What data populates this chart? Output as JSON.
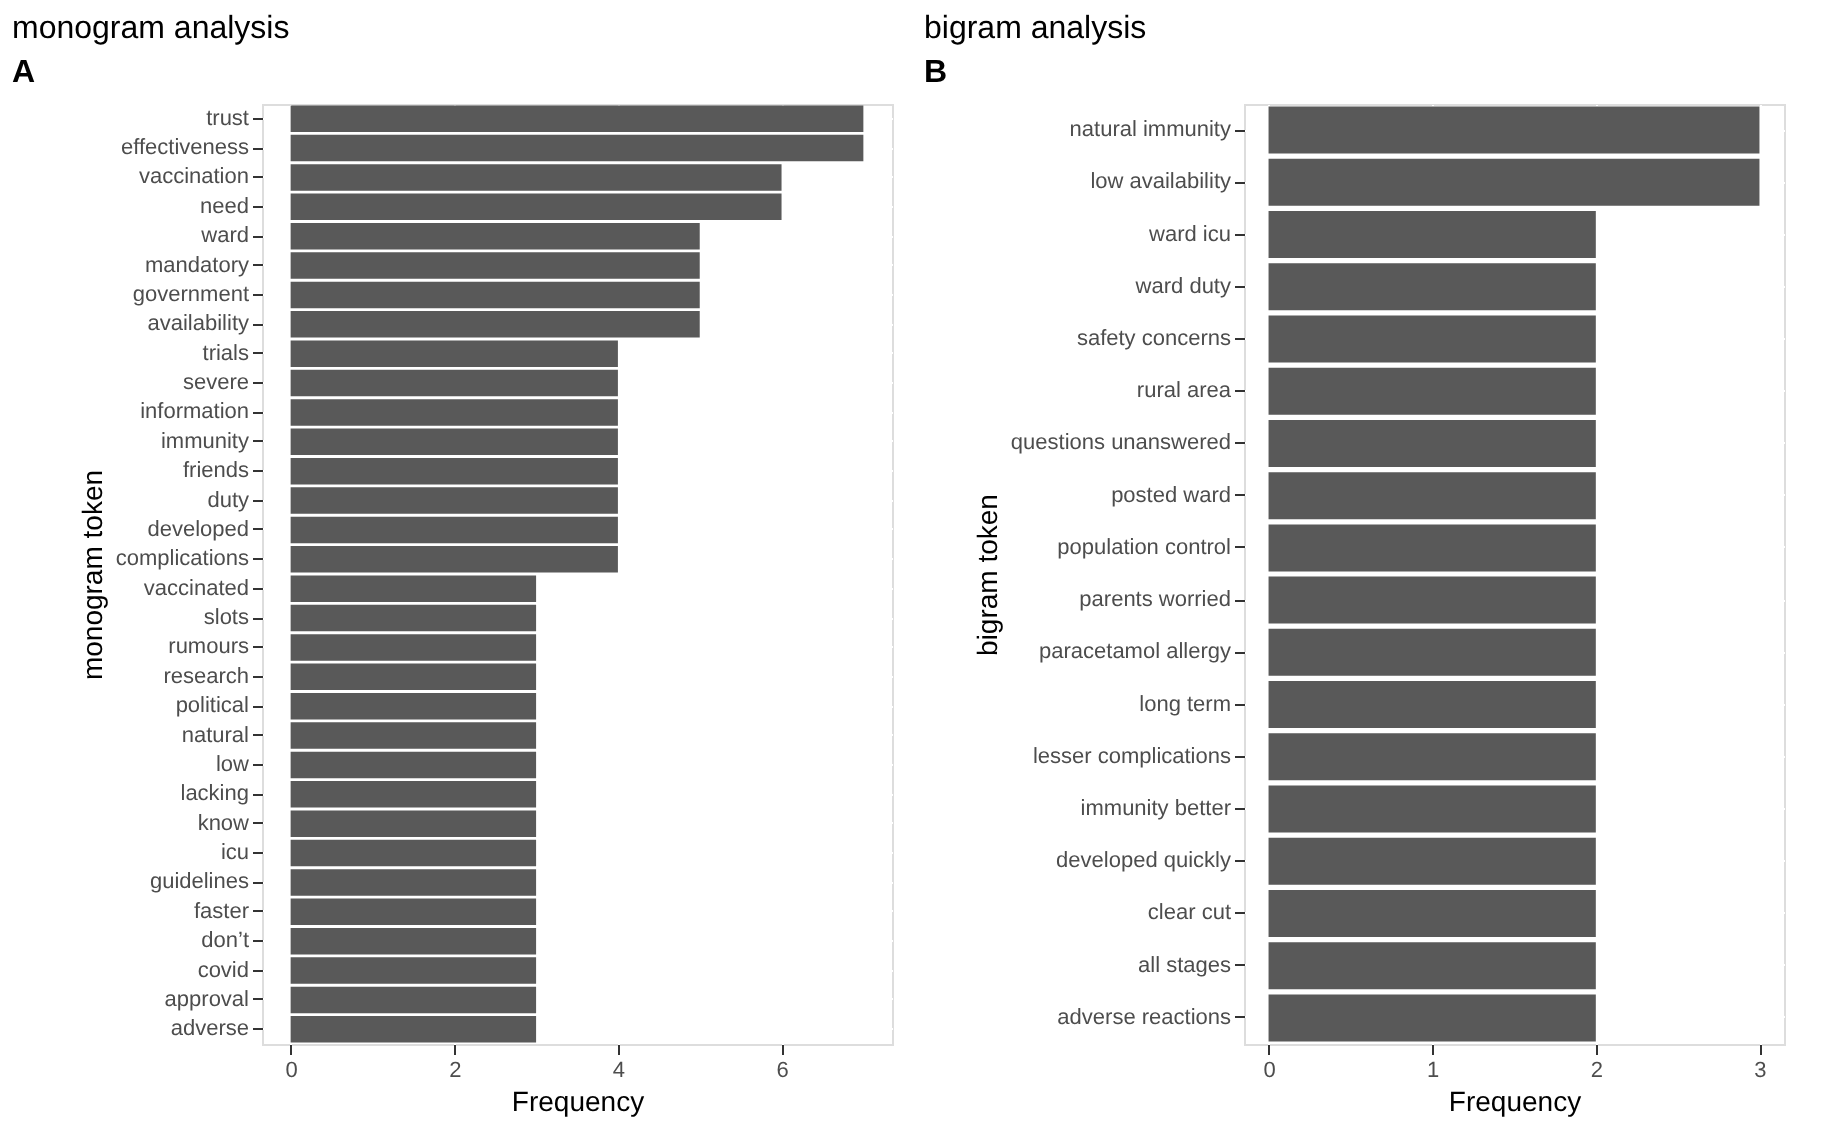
{
  "chart_data": [
    {
      "type": "bar",
      "orientation": "horizontal",
      "title": "monogram analysis",
      "xlabel": "Frequency",
      "ylabel": "monogram token",
      "annotations": [
        "A"
      ],
      "color": "#595959",
      "grid": true,
      "xlim": [
        -0.35,
        7.35
      ],
      "xticks": [
        0,
        2,
        4,
        6
      ],
      "categories": [
        "trust",
        "effectiveness",
        "vaccination",
        "need",
        "ward",
        "mandatory",
        "government",
        "availability",
        "trials",
        "severe",
        "information",
        "immunity",
        "friends",
        "duty",
        "developed",
        "complications",
        "vaccinated",
        "slots",
        "rumours",
        "research",
        "political",
        "natural",
        "low",
        "lacking",
        "know",
        "icu",
        "guidelines",
        "faster",
        "don’t",
        "covid",
        "approval",
        "adverse"
      ],
      "values": [
        7,
        7,
        6,
        6,
        5,
        5,
        5,
        5,
        4,
        4,
        4,
        4,
        4,
        4,
        4,
        4,
        3,
        3,
        3,
        3,
        3,
        3,
        3,
        3,
        3,
        3,
        3,
        3,
        3,
        3,
        3,
        3
      ]
    },
    {
      "type": "bar",
      "orientation": "horizontal",
      "title": "bigram analysis",
      "xlabel": "Frequency",
      "ylabel": "bigram token",
      "annotations": [
        "B"
      ],
      "color": "#595959",
      "grid": true,
      "xlim": [
        -0.15,
        3.15
      ],
      "xticks": [
        0,
        1,
        2,
        3
      ],
      "categories": [
        "natural immunity",
        "low availability",
        "ward icu",
        "ward duty",
        "safety concerns",
        "rural area",
        "questions unanswered",
        "posted ward",
        "population control",
        "parents worried",
        "paracetamol allergy",
        "long term",
        "lesser complications",
        "immunity better",
        "developed quickly",
        "clear cut",
        "all stages",
        "adverse reactions"
      ],
      "values": [
        3,
        3,
        2,
        2,
        2,
        2,
        2,
        2,
        2,
        2,
        2,
        2,
        2,
        2,
        2,
        2,
        2,
        2
      ]
    }
  ]
}
